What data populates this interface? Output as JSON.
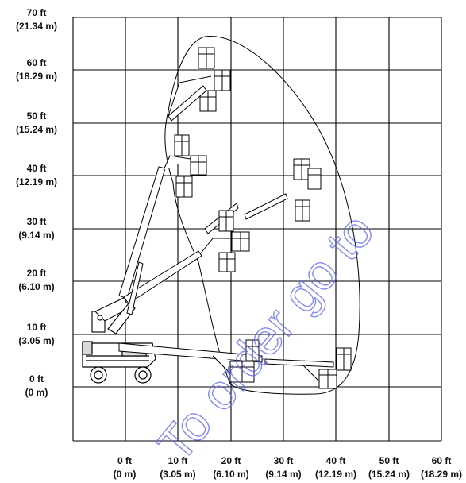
{
  "diagram": {
    "y_axis_labels": [
      {
        "ft": "70 ft",
        "m": "(21.34 m)"
      },
      {
        "ft": "60 ft",
        "m": "(18.29 m)"
      },
      {
        "ft": "50 ft",
        "m": "(15.24 m)"
      },
      {
        "ft": "40 ft",
        "m": "(12.19 m)"
      },
      {
        "ft": "30 ft",
        "m": "(9.14 m)"
      },
      {
        "ft": "20 ft",
        "m": "(6.10 m)"
      },
      {
        "ft": "10 ft",
        "m": "(3.05 m)"
      },
      {
        "ft": "0 ft",
        "m": "(0 m)"
      }
    ],
    "x_axis_labels": [
      {
        "ft": "0 ft",
        "m": "(0 m)"
      },
      {
        "ft": "10 ft",
        "m": "(3.05 m)"
      },
      {
        "ft": "20 ft",
        "m": "(6.10 m)"
      },
      {
        "ft": "30 ft",
        "m": "(9.14 m)"
      },
      {
        "ft": "40 ft",
        "m": "(12.19 m)"
      },
      {
        "ft": "50 ft",
        "m": "(15.24 m)"
      },
      {
        "ft": "60 ft",
        "m": "(18.29 m)"
      }
    ],
    "watermark": "To order go to",
    "watermark_color": "#5b65ec"
  }
}
